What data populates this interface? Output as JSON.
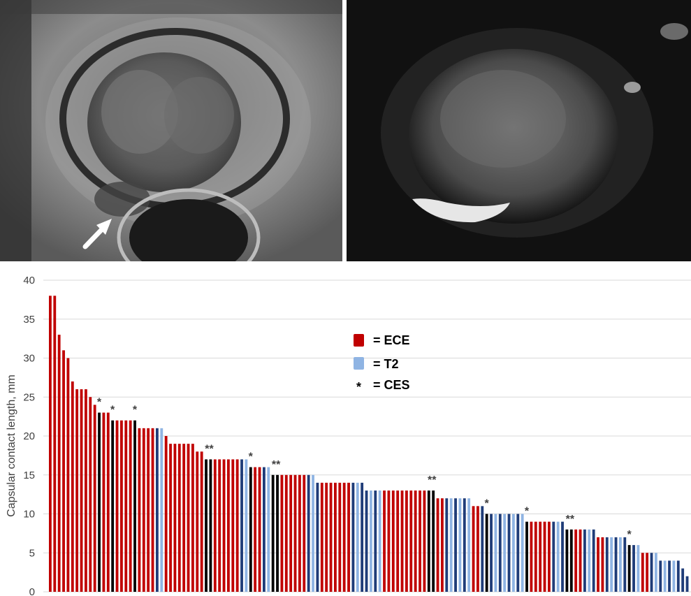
{
  "panels": [
    {
      "kind": "mri-t2-axial-prostate",
      "arrow_icon": "white-arrow-icon"
    },
    {
      "kind": "mri-dwi-axial-prostate"
    }
  ],
  "chart_data": {
    "type": "bar",
    "ylabel": "Capsular contact length, mm",
    "xlabel": "",
    "ylim": [
      0,
      40
    ],
    "yticks": [
      0,
      5,
      10,
      15,
      20,
      25,
      30,
      35,
      40
    ],
    "grid": true,
    "legend_placement": "top-center",
    "legend": [
      {
        "symbol": "red-square",
        "color": "#c00000",
        "label": "= ECE"
      },
      {
        "symbol": "blue-square",
        "color": "#8fb4e3",
        "label": "= T2"
      },
      {
        "symbol": "asterisk",
        "color": "#000000",
        "label": "= CES"
      }
    ],
    "category_colors": {
      "ECE": "#c00000",
      "T2": "#8fb4e3",
      "CES": "#000000",
      "other": "#1f3c78"
    },
    "bars": [
      {
        "value": 38,
        "cat": "ECE"
      },
      {
        "value": 38,
        "cat": "ECE"
      },
      {
        "value": 33,
        "cat": "ECE"
      },
      {
        "value": 31,
        "cat": "ECE"
      },
      {
        "value": 30,
        "cat": "ECE"
      },
      {
        "value": 27,
        "cat": "ECE"
      },
      {
        "value": 26,
        "cat": "ECE"
      },
      {
        "value": 26,
        "cat": "ECE"
      },
      {
        "value": 26,
        "cat": "ECE"
      },
      {
        "value": 25,
        "cat": "ECE"
      },
      {
        "value": 24,
        "cat": "ECE"
      },
      {
        "value": 23,
        "cat": "CES",
        "mark": "*"
      },
      {
        "value": 23,
        "cat": "ECE"
      },
      {
        "value": 23,
        "cat": "ECE"
      },
      {
        "value": 22,
        "cat": "CES",
        "mark": "*"
      },
      {
        "value": 22,
        "cat": "ECE"
      },
      {
        "value": 22,
        "cat": "ECE"
      },
      {
        "value": 22,
        "cat": "ECE"
      },
      {
        "value": 22,
        "cat": "ECE"
      },
      {
        "value": 22,
        "cat": "CES",
        "mark": "*"
      },
      {
        "value": 21,
        "cat": "ECE"
      },
      {
        "value": 21,
        "cat": "ECE"
      },
      {
        "value": 21,
        "cat": "ECE"
      },
      {
        "value": 21,
        "cat": "ECE"
      },
      {
        "value": 21,
        "cat": "other"
      },
      {
        "value": 21,
        "cat": "T2"
      },
      {
        "value": 20,
        "cat": "ECE"
      },
      {
        "value": 19,
        "cat": "ECE"
      },
      {
        "value": 19,
        "cat": "ECE"
      },
      {
        "value": 19,
        "cat": "ECE"
      },
      {
        "value": 19,
        "cat": "ECE"
      },
      {
        "value": 19,
        "cat": "ECE"
      },
      {
        "value": 19,
        "cat": "ECE"
      },
      {
        "value": 18,
        "cat": "ECE"
      },
      {
        "value": 18,
        "cat": "ECE"
      },
      {
        "value": 17,
        "cat": "CES",
        "mark": "**"
      },
      {
        "value": 17,
        "cat": "CES"
      },
      {
        "value": 17,
        "cat": "ECE"
      },
      {
        "value": 17,
        "cat": "ECE"
      },
      {
        "value": 17,
        "cat": "ECE"
      },
      {
        "value": 17,
        "cat": "ECE"
      },
      {
        "value": 17,
        "cat": "ECE"
      },
      {
        "value": 17,
        "cat": "ECE"
      },
      {
        "value": 17,
        "cat": "other"
      },
      {
        "value": 17,
        "cat": "T2"
      },
      {
        "value": 16,
        "cat": "CES",
        "mark": "*"
      },
      {
        "value": 16,
        "cat": "ECE"
      },
      {
        "value": 16,
        "cat": "ECE"
      },
      {
        "value": 16,
        "cat": "other"
      },
      {
        "value": 16,
        "cat": "T2"
      },
      {
        "value": 15,
        "cat": "CES",
        "mark": "**"
      },
      {
        "value": 15,
        "cat": "CES"
      },
      {
        "value": 15,
        "cat": "ECE"
      },
      {
        "value": 15,
        "cat": "ECE"
      },
      {
        "value": 15,
        "cat": "ECE"
      },
      {
        "value": 15,
        "cat": "ECE"
      },
      {
        "value": 15,
        "cat": "ECE"
      },
      {
        "value": 15,
        "cat": "ECE"
      },
      {
        "value": 15,
        "cat": "other"
      },
      {
        "value": 15,
        "cat": "T2"
      },
      {
        "value": 14,
        "cat": "other"
      },
      {
        "value": 14,
        "cat": "ECE"
      },
      {
        "value": 14,
        "cat": "ECE"
      },
      {
        "value": 14,
        "cat": "ECE"
      },
      {
        "value": 14,
        "cat": "ECE"
      },
      {
        "value": 14,
        "cat": "ECE"
      },
      {
        "value": 14,
        "cat": "ECE"
      },
      {
        "value": 14,
        "cat": "ECE"
      },
      {
        "value": 14,
        "cat": "other"
      },
      {
        "value": 14,
        "cat": "T2"
      },
      {
        "value": 14,
        "cat": "other"
      },
      {
        "value": 13,
        "cat": "other"
      },
      {
        "value": 13,
        "cat": "T2"
      },
      {
        "value": 13,
        "cat": "other"
      },
      {
        "value": 13,
        "cat": "T2"
      },
      {
        "value": 13,
        "cat": "ECE"
      },
      {
        "value": 13,
        "cat": "ECE"
      },
      {
        "value": 13,
        "cat": "ECE"
      },
      {
        "value": 13,
        "cat": "ECE"
      },
      {
        "value": 13,
        "cat": "ECE"
      },
      {
        "value": 13,
        "cat": "ECE"
      },
      {
        "value": 13,
        "cat": "ECE"
      },
      {
        "value": 13,
        "cat": "ECE"
      },
      {
        "value": 13,
        "cat": "ECE"
      },
      {
        "value": 13,
        "cat": "ECE"
      },
      {
        "value": 13,
        "cat": "CES",
        "mark": "**"
      },
      {
        "value": 13,
        "cat": "CES"
      },
      {
        "value": 12,
        "cat": "ECE"
      },
      {
        "value": 12,
        "cat": "ECE"
      },
      {
        "value": 12,
        "cat": "other"
      },
      {
        "value": 12,
        "cat": "T2"
      },
      {
        "value": 12,
        "cat": "other"
      },
      {
        "value": 12,
        "cat": "T2"
      },
      {
        "value": 12,
        "cat": "other"
      },
      {
        "value": 12,
        "cat": "T2"
      },
      {
        "value": 11,
        "cat": "ECE"
      },
      {
        "value": 11,
        "cat": "ECE"
      },
      {
        "value": 11,
        "cat": "other"
      },
      {
        "value": 10,
        "cat": "CES",
        "mark": "*"
      },
      {
        "value": 10,
        "cat": "other"
      },
      {
        "value": 10,
        "cat": "T2"
      },
      {
        "value": 10,
        "cat": "other"
      },
      {
        "value": 10,
        "cat": "T2"
      },
      {
        "value": 10,
        "cat": "other"
      },
      {
        "value": 10,
        "cat": "T2"
      },
      {
        "value": 10,
        "cat": "other"
      },
      {
        "value": 10,
        "cat": "T2"
      },
      {
        "value": 9,
        "cat": "CES",
        "mark": "*"
      },
      {
        "value": 9,
        "cat": "ECE"
      },
      {
        "value": 9,
        "cat": "ECE"
      },
      {
        "value": 9,
        "cat": "ECE"
      },
      {
        "value": 9,
        "cat": "ECE"
      },
      {
        "value": 9,
        "cat": "ECE"
      },
      {
        "value": 9,
        "cat": "other"
      },
      {
        "value": 9,
        "cat": "T2"
      },
      {
        "value": 9,
        "cat": "other"
      },
      {
        "value": 8,
        "cat": "CES",
        "mark": "**"
      },
      {
        "value": 8,
        "cat": "CES"
      },
      {
        "value": 8,
        "cat": "ECE"
      },
      {
        "value": 8,
        "cat": "ECE"
      },
      {
        "value": 8,
        "cat": "other"
      },
      {
        "value": 8,
        "cat": "T2"
      },
      {
        "value": 8,
        "cat": "other"
      },
      {
        "value": 7,
        "cat": "ECE"
      },
      {
        "value": 7,
        "cat": "ECE"
      },
      {
        "value": 7,
        "cat": "other"
      },
      {
        "value": 7,
        "cat": "T2"
      },
      {
        "value": 7,
        "cat": "other"
      },
      {
        "value": 7,
        "cat": "T2"
      },
      {
        "value": 7,
        "cat": "other"
      },
      {
        "value": 6,
        "cat": "CES",
        "mark": "*"
      },
      {
        "value": 6,
        "cat": "other"
      },
      {
        "value": 6,
        "cat": "T2"
      },
      {
        "value": 5,
        "cat": "ECE"
      },
      {
        "value": 5,
        "cat": "ECE"
      },
      {
        "value": 5,
        "cat": "other"
      },
      {
        "value": 5,
        "cat": "T2"
      },
      {
        "value": 4,
        "cat": "other"
      },
      {
        "value": 4,
        "cat": "T2"
      },
      {
        "value": 4,
        "cat": "other"
      },
      {
        "value": 4,
        "cat": "T2"
      },
      {
        "value": 4,
        "cat": "other"
      },
      {
        "value": 3,
        "cat": "other"
      },
      {
        "value": 2,
        "cat": "other"
      }
    ]
  }
}
